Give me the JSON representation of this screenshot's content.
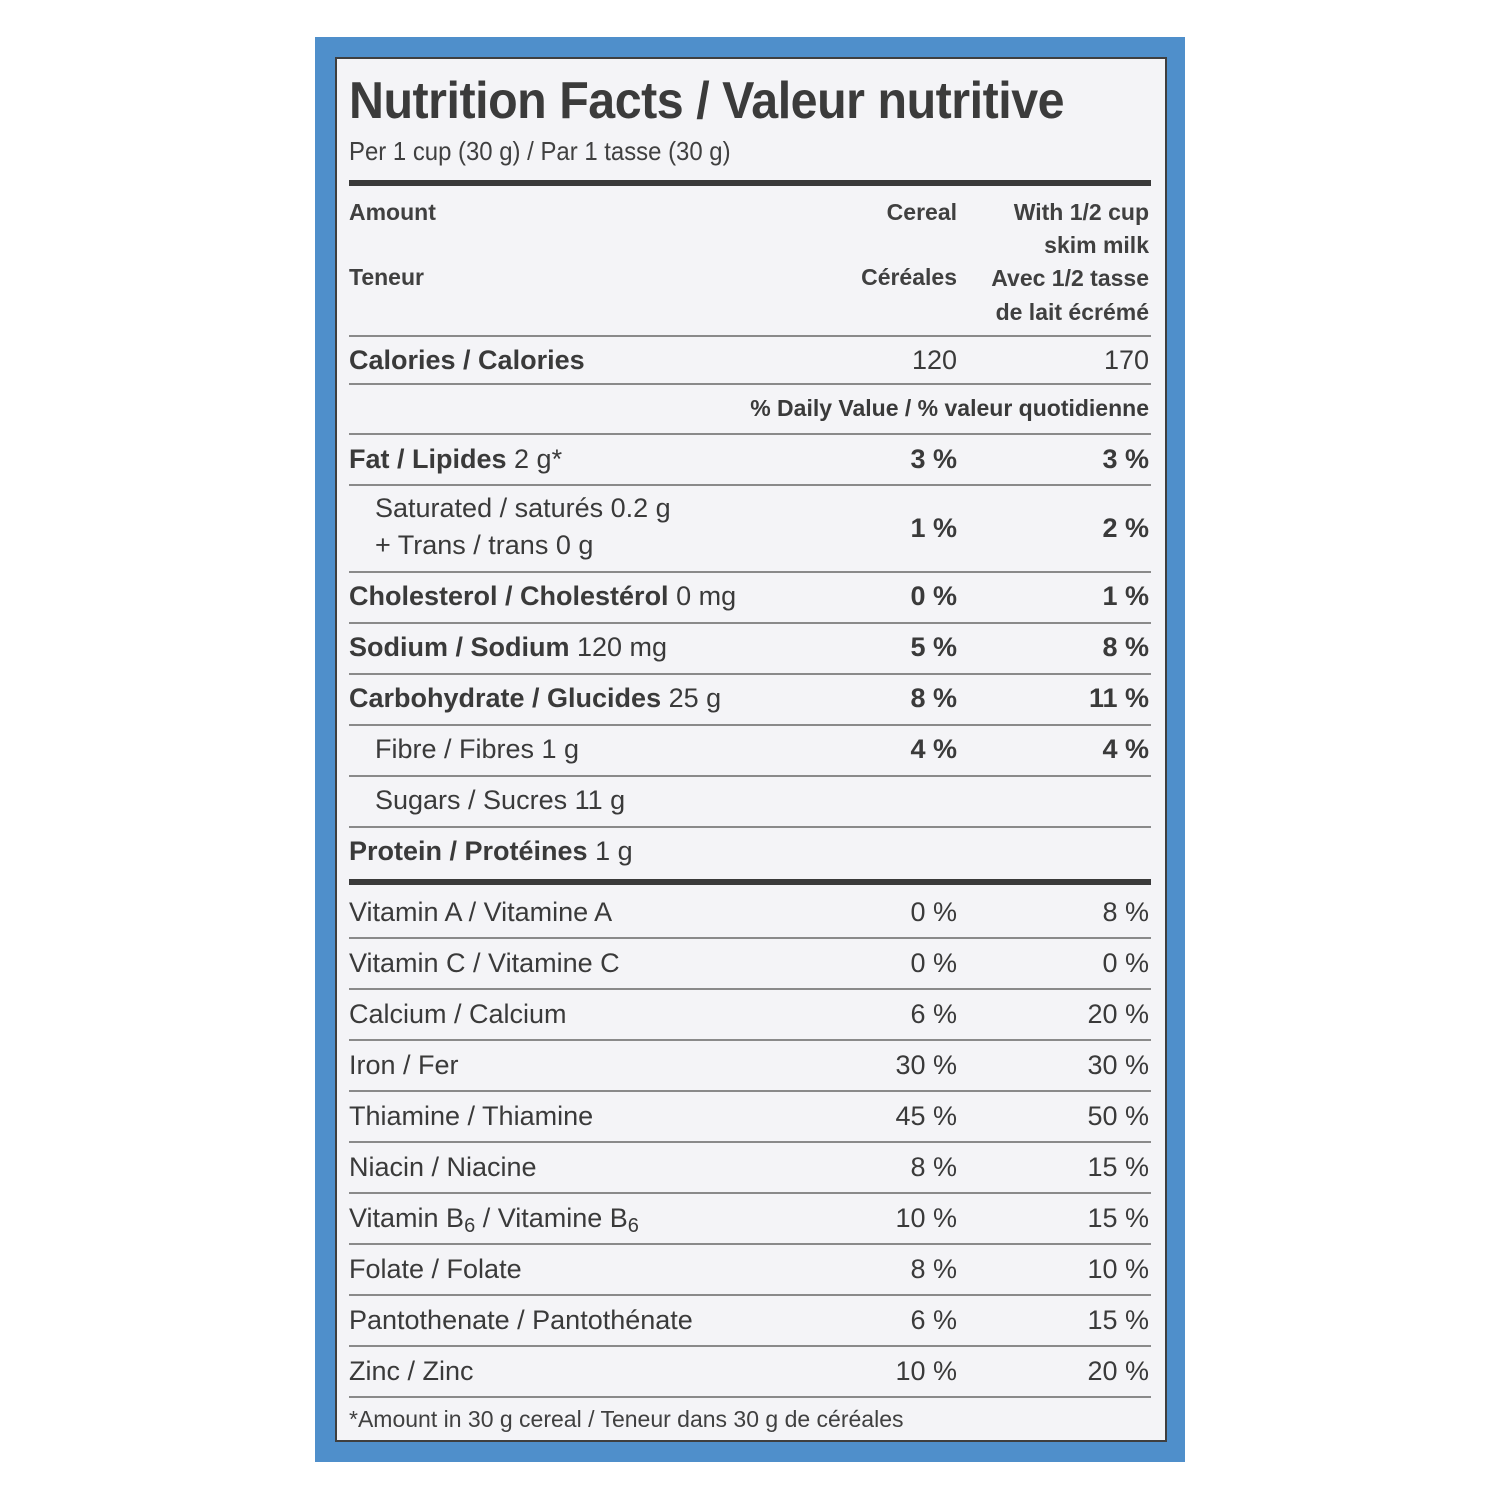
{
  "title": "Nutrition Facts / Valeur nutritive",
  "serving": "Per 1 cup (30 g) / Par 1 tasse (30 g)",
  "header": {
    "amount": "Amount",
    "teneur": "Teneur",
    "cereal": "Cereal",
    "cereales": "Céréales",
    "milk_en_1": "With 1/2 cup",
    "milk_en_2": "skim milk",
    "milk_fr_1": "Avec 1/2 tasse",
    "milk_fr_2": "de lait écrémé"
  },
  "calories": {
    "label": "Calories / Calories",
    "cereal": "120",
    "milk": "170"
  },
  "dv_header": "% Daily Value / % valeur quotidienne",
  "nutrients": [
    {
      "label": "Fat / Lipides",
      "amount": " 2 g*",
      "cereal": "3 %",
      "milk": "3 %"
    },
    {
      "label": "Saturated / saturés 0.2 g",
      "label2": "+ Trans / trans 0 g",
      "cereal": "1 %",
      "milk": "2 %"
    },
    {
      "label": "Cholesterol / Cholestérol",
      "amount": " 0 mg",
      "cereal": "0 %",
      "milk": "1 %"
    },
    {
      "label": "Sodium / Sodium",
      "amount": " 120 mg",
      "cereal": "5 %",
      "milk": "8 %"
    },
    {
      "label": "Carbohydrate / Glucides",
      "amount": " 25 g",
      "cereal": "8 %",
      "milk": "11 %"
    },
    {
      "label": "Fibre / Fibres 1 g",
      "cereal": "4 %",
      "milk": "4 %"
    },
    {
      "label": "Sugars / Sucres 11 g"
    },
    {
      "label": "Protein / Protéines",
      "amount": " 1 g"
    }
  ],
  "vitamins": [
    {
      "label": "Vitamin A / Vitamine A",
      "cereal": "0 %",
      "milk": "8 %"
    },
    {
      "label": "Vitamin C / Vitamine C",
      "cereal": "0 %",
      "milk": "0 %"
    },
    {
      "label": "Calcium / Calcium",
      "cereal": "6 %",
      "milk": "20 %"
    },
    {
      "label": "Iron / Fer",
      "cereal": "30 %",
      "milk": "30 %"
    },
    {
      "label": "Thiamine / Thiamine",
      "cereal": "45 %",
      "milk": "50 %"
    },
    {
      "label": "Niacin / Niacine",
      "cereal": "8 %",
      "milk": "15 %"
    },
    {
      "label_a": "Vitamin B",
      "sub_a": "6",
      "label_b": " / Vitamine B",
      "sub_b": "6",
      "cereal": "10 %",
      "milk": "15 %"
    },
    {
      "label": "Folate / Folate",
      "cereal": "8 %",
      "milk": "10 %"
    },
    {
      "label": "Pantothenate / Pantothénate",
      "cereal": "6 %",
      "milk": "15 %"
    },
    {
      "label": "Zinc / Zinc",
      "cereal": "10 %",
      "milk": "20 %"
    }
  ],
  "footnote": "*Amount in 30 g cereal / Teneur dans 30 g de céréales"
}
